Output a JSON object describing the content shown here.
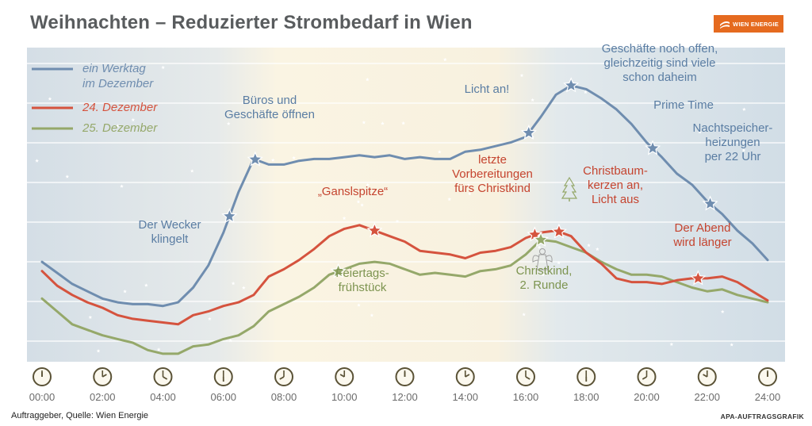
{
  "title": "Weihnachten – Reduzierter Strombedarf in Wien",
  "logo": {
    "text": "WIEN ENERGIE",
    "color": "#e56a1f"
  },
  "footer": {
    "source": "Auftraggeber, Quelle: Wien Energie",
    "credit": "APA-AUFTRAGSGRAFIK"
  },
  "colors": {
    "werktag": "#6f8daf",
    "dec24": "#d5533e",
    "dec25": "#95a86a",
    "grid": "#ffffff",
    "clock": "#5a5236"
  },
  "chart_data": {
    "type": "line",
    "xlabel": "",
    "ylabel": "",
    "x_ticks": [
      "00:00",
      "02:00",
      "04:00",
      "06:00",
      "08:00",
      "10:00",
      "12:00",
      "14:00",
      "16:00",
      "18:00",
      "20:00",
      "22:00",
      "24:00"
    ],
    "xlim": [
      0,
      24
    ],
    "ylim": [
      0,
      7.6
    ],
    "grid": true,
    "legend": "top-left",
    "series": [
      {
        "name": "ein Werktag im Dezember",
        "key": "werktag",
        "x": [
          0,
          0.5,
          1,
          1.5,
          2,
          2.5,
          3,
          3.5,
          4,
          4.5,
          5,
          5.5,
          6,
          6.5,
          7,
          7.5,
          8,
          8.5,
          9,
          9.5,
          10,
          10.5,
          11,
          11.5,
          12,
          12.5,
          13,
          13.5,
          14,
          14.5,
          15,
          15.5,
          16,
          16.5,
          17,
          17.5,
          18,
          18.5,
          19,
          19.5,
          20,
          20.5,
          21,
          21.5,
          22,
          22.5,
          23,
          23.5,
          24
        ],
        "y": [
          2.2,
          1.9,
          1.6,
          1.4,
          1.2,
          1.1,
          1.05,
          1.05,
          1.0,
          1.1,
          1.5,
          2.1,
          3.0,
          4.1,
          5.0,
          4.85,
          4.85,
          4.95,
          5.0,
          5.0,
          5.05,
          5.1,
          5.05,
          5.1,
          5.0,
          5.05,
          5.0,
          5.0,
          5.2,
          5.25,
          5.35,
          5.45,
          5.6,
          6.15,
          6.75,
          7.0,
          6.9,
          6.65,
          6.35,
          5.95,
          5.45,
          5.05,
          4.6,
          4.3,
          3.85,
          3.5,
          3.05,
          2.7,
          2.25
        ]
      },
      {
        "name": "24. Dezember",
        "key": "dec24",
        "x": [
          0,
          0.5,
          1,
          1.5,
          2,
          2.5,
          3,
          3.5,
          4,
          4.5,
          5,
          5.5,
          6,
          6.5,
          7,
          7.5,
          8,
          8.5,
          9,
          9.5,
          10,
          10.5,
          11,
          11.5,
          12,
          12.5,
          13,
          13.5,
          14,
          14.5,
          15,
          15.5,
          16,
          16.5,
          17,
          17.5,
          18,
          18.5,
          19,
          19.5,
          20,
          20.5,
          21,
          21.5,
          22,
          22.5,
          23,
          23.5,
          24
        ],
        "y": [
          1.95,
          1.55,
          1.3,
          1.1,
          0.95,
          0.75,
          0.65,
          0.6,
          0.55,
          0.5,
          0.75,
          0.85,
          1.0,
          1.1,
          1.3,
          1.8,
          2.0,
          2.25,
          2.55,
          2.9,
          3.1,
          3.2,
          3.05,
          2.9,
          2.75,
          2.5,
          2.45,
          2.4,
          2.3,
          2.45,
          2.5,
          2.6,
          2.85,
          3.0,
          3.05,
          2.9,
          2.45,
          2.15,
          1.75,
          1.65,
          1.65,
          1.6,
          1.7,
          1.75,
          1.75,
          1.8,
          1.65,
          1.4,
          1.15
        ]
      },
      {
        "name": "25. Dezember",
        "key": "dec25",
        "x": [
          0,
          0.5,
          1,
          1.5,
          2,
          2.5,
          3,
          3.5,
          4,
          4.5,
          5,
          5.5,
          6,
          6.5,
          7,
          7.5,
          8,
          8.5,
          9,
          9.5,
          10,
          10.5,
          11,
          11.5,
          12,
          12.5,
          13,
          13.5,
          14,
          14.5,
          15,
          15.5,
          16,
          16.5,
          17,
          17.5,
          18,
          18.5,
          19,
          19.5,
          20,
          20.5,
          21,
          21.5,
          22,
          22.5,
          23,
          23.5,
          24
        ],
        "y": [
          1.2,
          0.85,
          0.5,
          0.35,
          0.2,
          0.1,
          0.0,
          -0.2,
          -0.3,
          -0.3,
          -0.1,
          -0.05,
          0.1,
          0.2,
          0.45,
          0.85,
          1.05,
          1.25,
          1.5,
          1.85,
          2.0,
          2.15,
          2.2,
          2.15,
          2.0,
          1.85,
          1.9,
          1.85,
          1.8,
          1.95,
          2.0,
          2.1,
          2.4,
          2.8,
          2.75,
          2.6,
          2.45,
          2.2,
          2.0,
          1.85,
          1.85,
          1.8,
          1.65,
          1.5,
          1.4,
          1.45,
          1.3,
          1.2,
          1.1
        ]
      }
    ],
    "legend_entries": [
      {
        "key": "werktag",
        "lines": [
          "ein Werktag",
          "im Dezember"
        ]
      },
      {
        "key": "dec24",
        "lines": [
          "24. Dezember"
        ]
      },
      {
        "key": "dec25",
        "lines": [
          "25. Dezember"
        ]
      }
    ],
    "annotations": [
      {
        "key": "werktag",
        "x": 6.2,
        "lines": [
          "Der Wecker",
          "klingelt"
        ]
      },
      {
        "key": "werktag",
        "x": 7.05,
        "lines": [
          "Büros und",
          "Geschäfte öffnen"
        ]
      },
      {
        "key": "werktag",
        "x": 16.1,
        "lines": [
          "Licht an!"
        ]
      },
      {
        "key": "werktag",
        "x": 17.5,
        "lines": [
          "Geschäfte noch offen,",
          "gleichzeitig sind viele",
          "schon daheim"
        ]
      },
      {
        "key": "werktag",
        "x": 20.2,
        "lines": [
          "Prime Time"
        ]
      },
      {
        "key": "werktag",
        "x": 22.1,
        "lines": [
          "Nachtspeicher-",
          "heizungen",
          "per 22 Uhr"
        ]
      },
      {
        "key": "dec24",
        "x": 11.0,
        "lines": [
          "„Ganslspitze“"
        ]
      },
      {
        "key": "dec24",
        "x": 16.3,
        "lines": [
          "letzte",
          "Vorbereitungen",
          "fürs Christkind"
        ]
      },
      {
        "key": "dec24",
        "x": 17.1,
        "lines": [
          "Christbaum-",
          "kerzen an,",
          "Licht aus"
        ]
      },
      {
        "key": "dec24",
        "x": 21.7,
        "lines": [
          "Der Abend",
          "wird länger"
        ]
      },
      {
        "key": "dec25",
        "x": 9.8,
        "lines": [
          "Feiertags-",
          "frühstück"
        ]
      },
      {
        "key": "dec25",
        "x": 16.5,
        "lines": [
          "Christkind,",
          "2. Runde"
        ]
      }
    ]
  }
}
